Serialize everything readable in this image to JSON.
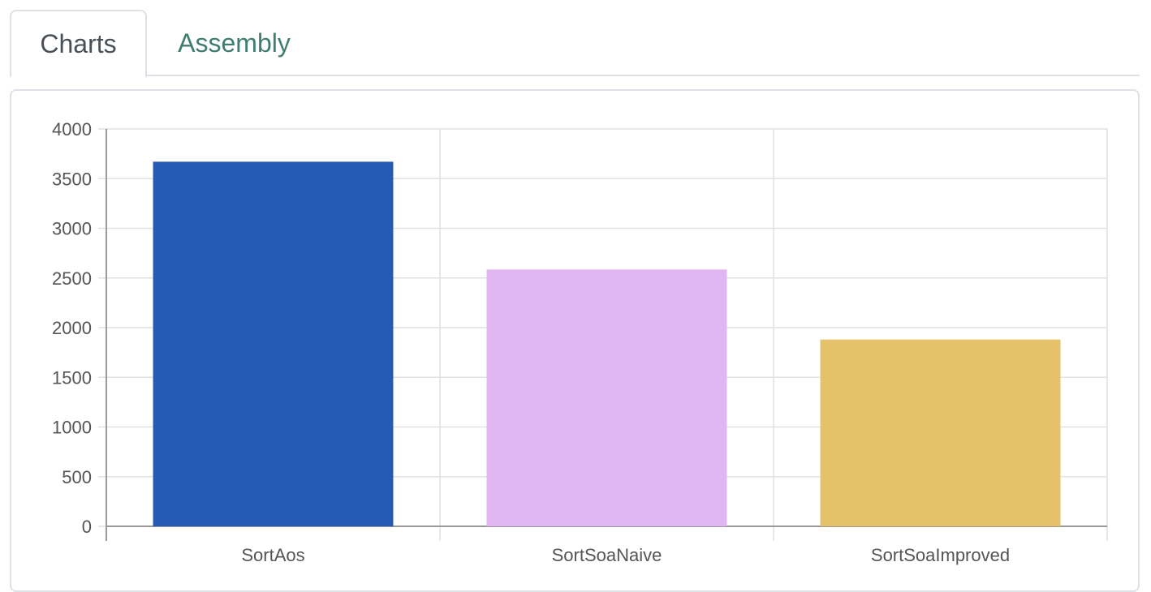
{
  "tabs": {
    "charts_label": "Charts",
    "assembly_label": "Assembly"
  },
  "colors": {
    "grid": "#e1e1e1",
    "axis": "#999999"
  },
  "chart_data": {
    "type": "bar",
    "categories": [
      "SortAos",
      "SortSoaNaive",
      "SortSoaImproved"
    ],
    "values": [
      3670,
      2585,
      1880
    ],
    "bar_colors": [
      "#255bb3",
      "#e0b5f2",
      "#e5c26a"
    ],
    "ylim": [
      0,
      4000
    ],
    "yticks": [
      0,
      500,
      1000,
      1500,
      2000,
      2500,
      3000,
      3500,
      4000
    ],
    "grid": true,
    "legend": "none",
    "title": "",
    "xlabel": "",
    "ylabel": ""
  }
}
